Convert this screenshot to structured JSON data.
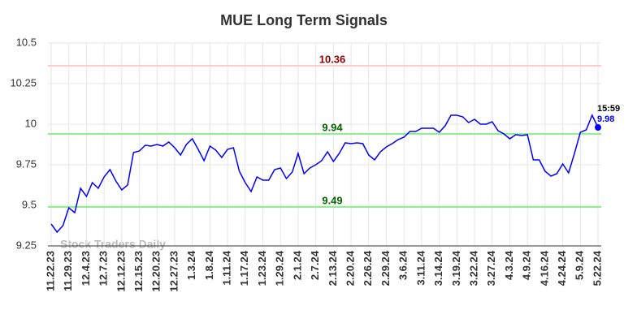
{
  "chart_data": {
    "type": "line",
    "title": "MUE Long Term Signals",
    "categories": [
      "11.22.23",
      null,
      null,
      "11.29.23",
      null,
      null,
      "12.4.23",
      null,
      null,
      "12.7.23",
      null,
      null,
      "12.12.23",
      null,
      null,
      "12.15.23",
      null,
      null,
      "12.20.23",
      null,
      null,
      "12.27.23",
      null,
      null,
      "1.3.24",
      null,
      null,
      "1.8.24",
      null,
      null,
      "1.11.24",
      null,
      null,
      "1.17.24",
      null,
      null,
      "1.23.24",
      null,
      null,
      "1.29.24",
      null,
      null,
      "2.1.24",
      null,
      null,
      "2.7.24",
      null,
      null,
      "2.13.24",
      null,
      null,
      "2.20.24",
      null,
      null,
      "2.26.24",
      null,
      null,
      "2.29.24",
      null,
      null,
      "3.6.24",
      null,
      null,
      "3.11.24",
      null,
      null,
      "3.14.24",
      null,
      null,
      "3.19.24",
      null,
      null,
      "3.22.24",
      null,
      null,
      "3.27.24",
      null,
      null,
      "4.3.24",
      null,
      null,
      "4.9.24",
      null,
      null,
      "4.16.24",
      null,
      null,
      "4.24.24",
      null,
      null,
      "5.9.24",
      null,
      null,
      "5.22.24"
    ],
    "values": [
      9.385,
      9.335,
      9.375,
      9.485,
      9.455,
      9.605,
      9.555,
      9.64,
      9.605,
      9.675,
      9.72,
      9.65,
      9.595,
      9.625,
      9.825,
      9.835,
      9.87,
      9.865,
      9.875,
      9.865,
      9.89,
      9.855,
      9.81,
      9.875,
      9.91,
      9.845,
      9.775,
      9.865,
      9.84,
      9.795,
      9.845,
      9.855,
      9.71,
      9.64,
      9.585,
      9.675,
      9.655,
      9.655,
      9.72,
      9.73,
      9.665,
      9.705,
      9.82,
      9.695,
      9.73,
      9.75,
      9.775,
      9.83,
      9.77,
      9.82,
      9.885,
      9.88,
      9.885,
      9.88,
      9.81,
      9.78,
      9.83,
      9.86,
      9.88,
      9.905,
      9.92,
      9.955,
      9.955,
      9.975,
      9.975,
      9.975,
      9.95,
      9.99,
      10.055,
      10.055,
      10.045,
      10.01,
      10.03,
      10.0,
      10.0,
      10.015,
      9.96,
      9.94,
      9.91,
      9.935,
      9.93,
      9.935,
      9.78,
      9.78,
      9.71,
      9.68,
      9.695,
      9.755,
      9.7,
      9.82,
      9.95,
      9.965,
      10.055,
      9.98
    ],
    "color": "#0000ff",
    "ylim": [
      9.25,
      10.5
    ],
    "yticks": [
      9.25,
      9.5,
      9.75,
      10,
      10.25,
      10.5
    ],
    "grid": true,
    "hlines": [
      {
        "value": 10.36,
        "color": "#ffcccc",
        "label_color": "#8b0000"
      },
      {
        "value": 9.94,
        "color": "#90ee90",
        "label_color": "#006400"
      },
      {
        "value": 9.49,
        "color": "#90ee90",
        "label_color": "#006400"
      }
    ],
    "last_time": "15:59",
    "watermark": "Stock Traders Daily"
  }
}
